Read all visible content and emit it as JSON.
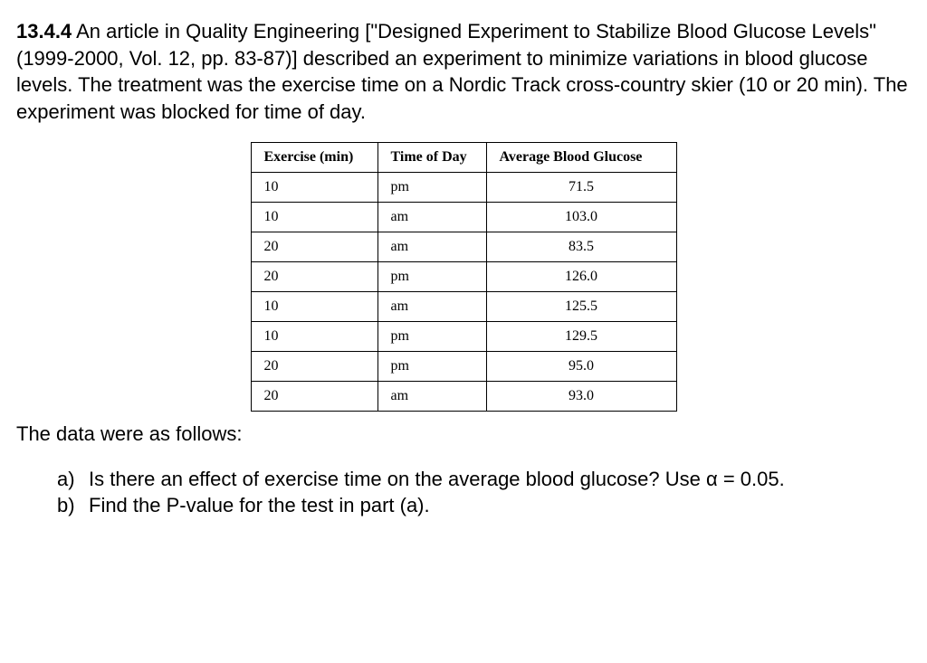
{
  "problem": {
    "number": "13.4.4",
    "intro": "An article in Quality Engineering [\"Designed Experiment to Stabilize Blood Glucose Levels\" (1999-2000, Vol. 12, pp. 83-87)] described an experiment to minimize variations in blood glucose levels. The treatment was the exercise time on a Nordic Track cross-country skier (10 or 20 min). The experiment was blocked for time of day."
  },
  "table": {
    "headers": [
      "Exercise (min)",
      "Time of Day",
      "Average Blood Glucose"
    ],
    "rows": [
      [
        "10",
        "pm",
        "71.5"
      ],
      [
        "10",
        "am",
        "103.0"
      ],
      [
        "20",
        "am",
        "83.5"
      ],
      [
        "20",
        "pm",
        "126.0"
      ],
      [
        "10",
        "am",
        "125.5"
      ],
      [
        "10",
        "pm",
        "129.5"
      ],
      [
        "20",
        "pm",
        "95.0"
      ],
      [
        "20",
        "am",
        "93.0"
      ]
    ]
  },
  "follows_text": "The data were as follows:",
  "questions": {
    "a": {
      "label": "a)",
      "text": "Is there an effect of exercise time on the average blood glucose? Use α = 0.05."
    },
    "b": {
      "label": "b)",
      "text": "Find the P-value for the test in part (a)."
    }
  }
}
